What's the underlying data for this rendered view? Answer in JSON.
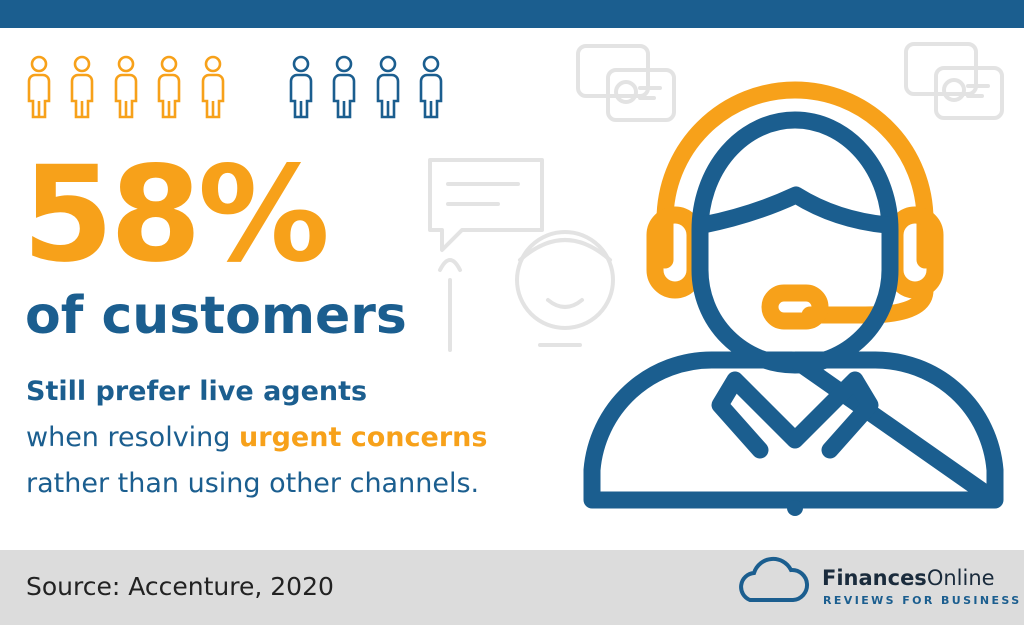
{
  "headline": {
    "stat": "58%",
    "subject": "of customers"
  },
  "body": {
    "line1": "Still prefer live agents",
    "line2_start": "when resolving",
    "line2_highlight": "urgent concerns",
    "line3": "rather than using other channels."
  },
  "footer": {
    "source": "Source: Accenture, 2020",
    "brand_bold": "Finances",
    "brand_rest": "Online",
    "tagline": "REVIEWS FOR BUSINESS"
  }
}
